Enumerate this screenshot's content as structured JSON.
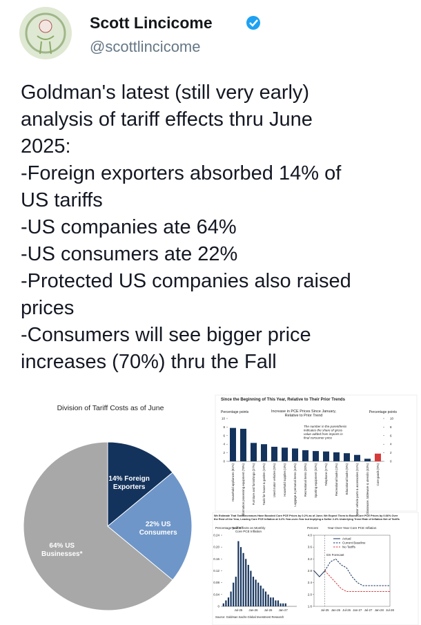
{
  "tweet": {
    "name": "Scott Lincicome",
    "handle": "@scottlincicome",
    "text_lines": [
      "Goldman's latest (still very early)",
      "analysis of tariff effects thru June",
      "2025:",
      "-Foreign exporters absorbed 14% of",
      "US tariffs",
      "-US companies ate 64%",
      "-US consumers ate 22%",
      "-Protected US companies also raised",
      "prices",
      "-Consumers will see bigger price",
      "increases (70%) thru the Fall"
    ]
  },
  "chart_data": [
    {
      "type": "pie",
      "title": "Division of Tariff Costs as of June",
      "values": [
        14,
        22,
        64
      ],
      "value_labels": [
        "14% Foreign Exporters",
        "22% US Consumers",
        "64% US Businesses*"
      ],
      "colors": [
        "#14335c",
        "#6f96c8",
        "#a8a8a8"
      ]
    },
    {
      "type": "bar",
      "title": "Since the Beginning of This Year, Relative to Their Prior Trends",
      "subtitle": [
        "Increase in PCE Prices Since January,",
        "Relative to Prior Trend"
      ],
      "y_label": "Percentage points",
      "y2_label": "Percentage points",
      "annotation": [
        "The number in the parenthesis",
        "indicates the share of gross",
        "value added from imports in",
        "final consumer price"
      ],
      "categories": [
        "Household appliances (81%)",
        "Information processing equipment (78%)",
        "Furniture and furnishings (27%)",
        "Tools for house & garden (19%)",
        "Used motor vehicles (5%)",
        "Household supplies (4%)",
        "Luggage & personal items (44%)",
        "Recreational items (20%)",
        "Sporting equipment (32%)",
        "Telephone (27%)",
        "Recreational books (3%)",
        "Educational books (5%)",
        "Motor vehicle parts & accessories (11%)",
        "Glassware, tableware & utensils (43%)",
        "Core goods (9%)"
      ],
      "values": [
        7.8,
        7.6,
        4.3,
        4.0,
        3.4,
        3.2,
        3.0,
        2.6,
        2.4,
        2.3,
        2.1,
        1.9,
        1.5,
        0.6,
        1.8
      ],
      "colors": [
        "#14335c",
        "#14335c",
        "#14335c",
        "#14335c",
        "#14335c",
        "#14335c",
        "#14335c",
        "#14335c",
        "#14335c",
        "#14335c",
        "#14335c",
        "#14335c",
        "#14335c",
        "#14335c",
        "#d63a3a"
      ],
      "ylim": [
        0,
        10
      ],
      "yticks": [
        0,
        2,
        4,
        6,
        8,
        10
      ],
      "y2lim": [
        0,
        10
      ],
      "y2ticks": [
        0,
        2,
        4,
        6,
        8,
        10
      ]
    },
    {
      "type": "bar",
      "title": [
        "We Estimate That Tariff Increases Have Boosted Core PCE Prices by 0.2% as of June; We Expect Them to Boost Core PCE Prices by 0.66% Over",
        "the Rest of the Year, Leaving Core PCE Inflation at 3.2% Year-over-Year but Implying a Softer 2.4% Underlying Trend Rate of Inflation Net of Tariffs"
      ],
      "subtitle": [
        "Tariff Effects on Monthly",
        "Core PCE Inflation"
      ],
      "y_label": "Percentage points",
      "source": "Source: Goldman Sachs Global Investment Research",
      "categories": [
        null,
        null,
        null,
        null,
        null,
        null,
        "Jul-25",
        null,
        null,
        null,
        null,
        null,
        "Jan-26",
        null,
        null,
        null,
        null,
        null,
        "Jul-26",
        null,
        null,
        null,
        null,
        null,
        "Jan-27",
        null,
        null,
        null,
        null,
        null
      ],
      "values": [
        0.01,
        0.02,
        0.03,
        0.05,
        0.08,
        0.1,
        0.22,
        0.2,
        0.18,
        0.16,
        0.14,
        0.12,
        0.1,
        0.09,
        0.08,
        0.07,
        0.06,
        0.05,
        0.04,
        0.03,
        0.03,
        0.02,
        0.02,
        0.01,
        0.01,
        0.01,
        0,
        0,
        0,
        0
      ],
      "color": "#14335c",
      "ylim": [
        0,
        0.24
      ],
      "yticks": [
        0,
        0.04,
        0.08,
        0.12,
        0.16,
        {
          "value": 0.2,
          "label": "0.20"
        },
        0.24
      ]
    },
    {
      "type": "line",
      "subtitle": "Year-Over-Year Core PCE Inflation",
      "y_label": "Percent",
      "annotation": "GS Forecast",
      "categories": [
        null,
        null,
        "Jul-25",
        null,
        "Jan-26",
        null,
        "Jul-26",
        null,
        "Jan-27",
        null,
        "Jul-27",
        null,
        "Jan-28",
        null,
        "Jul-28"
      ],
      "series": [
        {
          "name": "Actual",
          "color": "#14335c",
          "dashed": false,
          "values": [
            2.8,
            2.6,
            2.8,
            null,
            null,
            null,
            null,
            null,
            null,
            null,
            null,
            null,
            null,
            null,
            null
          ]
        },
        {
          "name": "Current Baseline",
          "color": "#14335c",
          "dashed": true,
          "values": [
            null,
            null,
            2.8,
            3.1,
            3.2,
            3.0,
            2.9,
            2.6,
            2.4,
            2.3,
            2.3,
            2.3,
            2.3,
            2.3,
            2.3
          ]
        },
        {
          "name": "No Tariffs",
          "color": "#d63a3a",
          "dashed": true,
          "values": [
            null,
            null,
            2.8,
            2.6,
            2.4,
            2.2,
            2.1,
            2.1,
            2.1,
            2.1,
            2.1,
            2.1,
            2.1,
            2.1,
            2.1
          ]
        }
      ],
      "ylim": [
        1.6,
        4.0
      ],
      "yticks": [
        1.6,
        {
          "value": 2,
          "label": "2.0"
        },
        2.4,
        2.8,
        3.2,
        3.6,
        {
          "value": 4,
          "label": "4.0"
        }
      ]
    }
  ]
}
